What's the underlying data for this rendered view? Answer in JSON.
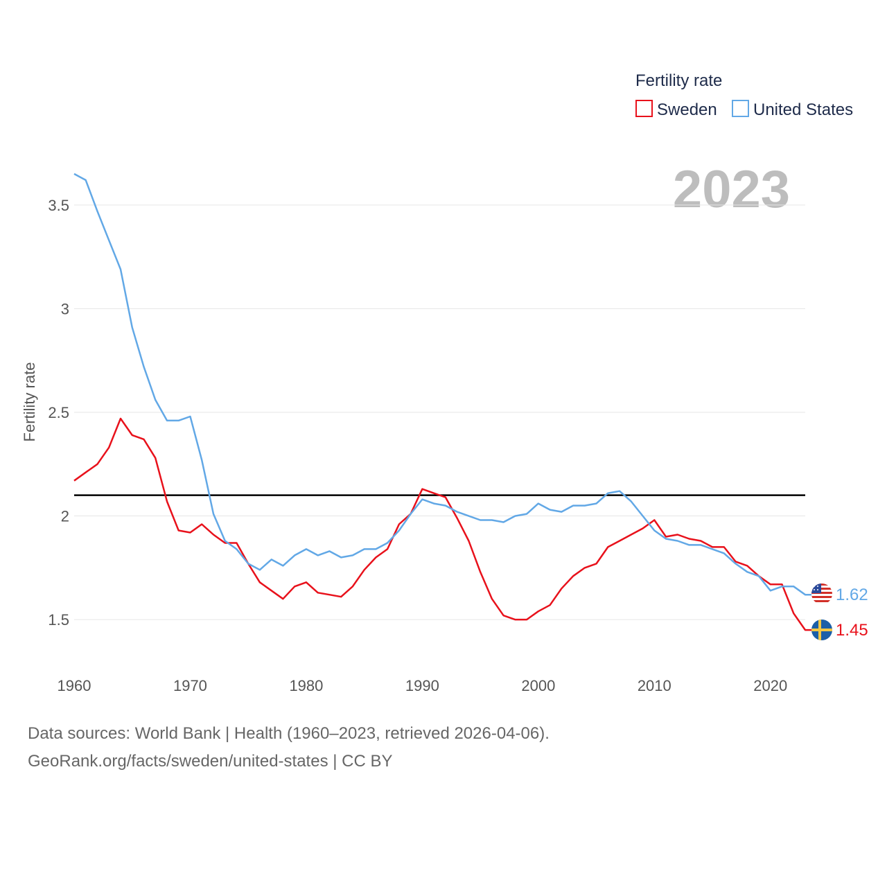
{
  "chart_data": {
    "type": "line",
    "title": "",
    "legend_title": "Fertility rate",
    "legend_position": "top-right",
    "ylabel": "Fertility rate",
    "xlabel": "",
    "xlim": [
      1960,
      2023
    ],
    "ylim": [
      1.33,
      3.72
    ],
    "x_ticks": [
      1960,
      1970,
      1980,
      1990,
      2000,
      2010,
      2020
    ],
    "y_ticks": [
      1.5,
      2,
      2.5,
      3,
      3.5
    ],
    "y_tick_labels": [
      "1.5",
      "2",
      "2.5",
      "3",
      "3.5"
    ],
    "year_label": "2023",
    "reference_line": {
      "y": 2.1,
      "color": "#000000"
    },
    "x": [
      1960,
      1961,
      1962,
      1963,
      1964,
      1965,
      1966,
      1967,
      1968,
      1969,
      1970,
      1971,
      1972,
      1973,
      1974,
      1975,
      1976,
      1977,
      1978,
      1979,
      1980,
      1981,
      1982,
      1983,
      1984,
      1985,
      1986,
      1987,
      1988,
      1989,
      1990,
      1991,
      1992,
      1993,
      1994,
      1995,
      1996,
      1997,
      1998,
      1999,
      2000,
      2001,
      2002,
      2003,
      2004,
      2005,
      2006,
      2007,
      2008,
      2009,
      2010,
      2011,
      2012,
      2013,
      2014,
      2015,
      2016,
      2017,
      2018,
      2019,
      2020,
      2021,
      2022,
      2023
    ],
    "series": [
      {
        "name": "Sweden",
        "color": "#e8111b",
        "end_label": "1.45",
        "flag": "sweden-flag",
        "values": [
          2.17,
          2.21,
          2.25,
          2.33,
          2.47,
          2.39,
          2.37,
          2.28,
          2.07,
          1.93,
          1.92,
          1.96,
          1.91,
          1.87,
          1.87,
          1.77,
          1.68,
          1.64,
          1.6,
          1.66,
          1.68,
          1.63,
          1.62,
          1.61,
          1.66,
          1.74,
          1.8,
          1.84,
          1.96,
          2.01,
          2.13,
          2.11,
          2.09,
          1.99,
          1.88,
          1.73,
          1.6,
          1.52,
          1.5,
          1.5,
          1.54,
          1.57,
          1.65,
          1.71,
          1.75,
          1.77,
          1.85,
          1.88,
          1.91,
          1.94,
          1.98,
          1.9,
          1.91,
          1.89,
          1.88,
          1.85,
          1.85,
          1.78,
          1.76,
          1.71,
          1.67,
          1.67,
          1.53,
          1.45
        ]
      },
      {
        "name": "United States",
        "color": "#62a8e6",
        "end_label": "1.62",
        "flag": "usa-flag",
        "values": [
          3.65,
          3.62,
          3.47,
          3.33,
          3.19,
          2.91,
          2.72,
          2.56,
          2.46,
          2.46,
          2.48,
          2.27,
          2.01,
          1.88,
          1.84,
          1.77,
          1.74,
          1.79,
          1.76,
          1.81,
          1.84,
          1.81,
          1.83,
          1.8,
          1.81,
          1.84,
          1.84,
          1.87,
          1.93,
          2.01,
          2.08,
          2.06,
          2.05,
          2.02,
          2.0,
          1.98,
          1.98,
          1.97,
          2.0,
          2.01,
          2.06,
          2.03,
          2.02,
          2.05,
          2.05,
          2.06,
          2.11,
          2.12,
          2.07,
          2.0,
          1.93,
          1.89,
          1.88,
          1.86,
          1.86,
          1.84,
          1.82,
          1.77,
          1.73,
          1.71,
          1.64,
          1.66,
          1.66,
          1.62
        ]
      }
    ]
  },
  "sources": {
    "line1": "Data sources: World Bank | Health (1960–2023, retrieved 2026-04-06).",
    "line2": "GeoRank.org/facts/sweden/united-states | CC BY"
  }
}
